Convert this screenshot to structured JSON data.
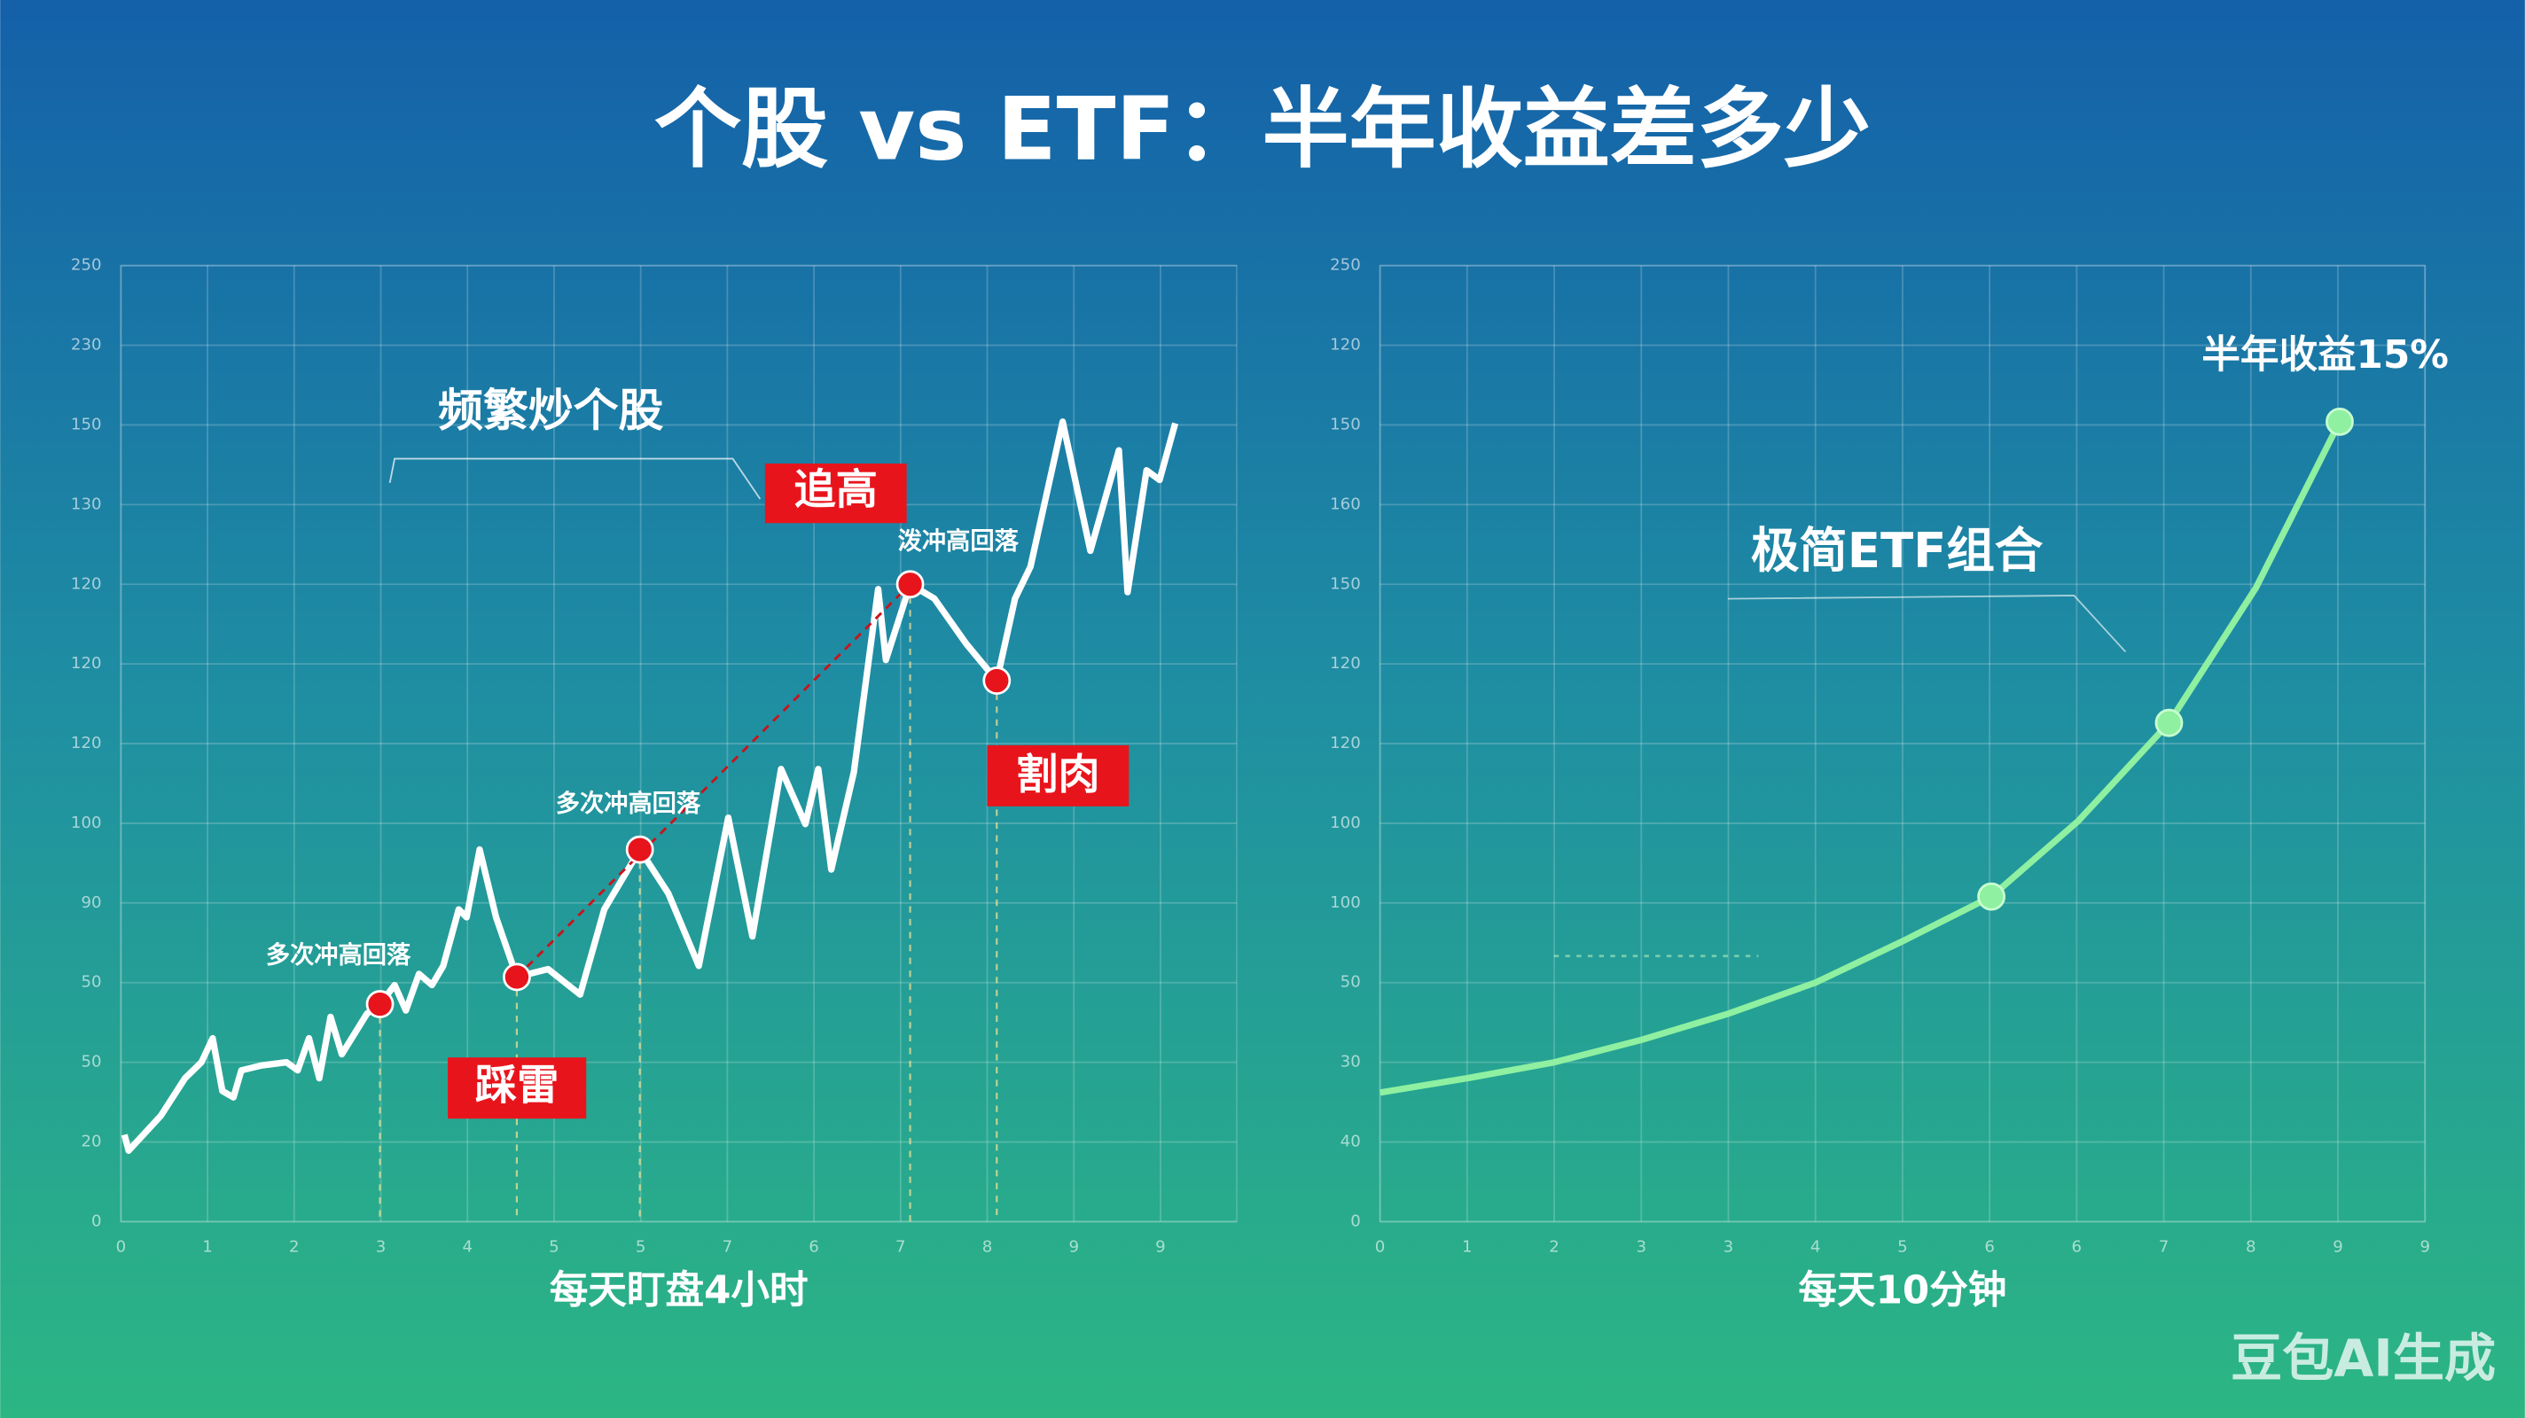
{
  "title": "个股 vs ETF：半年收益差多少",
  "watermark": "豆包AI生成",
  "chart_data": [
    {
      "type": "line",
      "x_label": "每天盯盘4小时",
      "xlim": [
        0,
        12.88
      ],
      "ylim": [
        0,
        12
      ],
      "xticks": [
        0,
        1,
        2,
        3,
        4,
        5,
        {
          "value": 6,
          "label": "5"
        },
        {
          "value": 7,
          "label": "7"
        },
        {
          "value": 8,
          "label": "6"
        },
        {
          "value": 9,
          "label": "7"
        },
        {
          "value": 10,
          "label": "8"
        },
        {
          "value": 11,
          "label": "9"
        },
        {
          "value": 12,
          "label": "9"
        }
      ],
      "yticks": [
        0,
        {
          "value": 1,
          "label": "20"
        },
        {
          "value": 2,
          "label": "50"
        },
        {
          "value": 3,
          "label": "50"
        },
        {
          "value": 4,
          "label": "90"
        },
        {
          "value": 5,
          "label": "100"
        },
        {
          "value": 6,
          "label": "120"
        },
        {
          "value": 7,
          "label": "120"
        },
        {
          "value": 8,
          "label": "120"
        },
        {
          "value": 9,
          "label": "130"
        },
        {
          "value": 10,
          "label": "150"
        },
        {
          "value": 11,
          "label": "230"
        },
        {
          "value": 12,
          "label": "250"
        }
      ],
      "grid": true,
      "series": [
        {
          "style": "line",
          "color": "#ffffff",
          "x": [
            0.04,
            0.09,
            0.46,
            0.74,
            0.93,
            1.06,
            1.17,
            1.3,
            1.39,
            1.62,
            1.91,
            2.04,
            2.17,
            2.29,
            2.42,
            2.55,
            2.84,
            2.99,
            3.16,
            3.29,
            3.44,
            3.59,
            3.72,
            3.9,
            3.99,
            4.14,
            4.33,
            4.57,
            4.93,
            5.3,
            5.58,
            5.99,
            6.32,
            6.67,
            7.01,
            7.29,
            7.62,
            7.9,
            8.05,
            8.2,
            8.46,
            8.74,
            8.83,
            9.11,
            9.39,
            9.76,
            10.11,
            10.32,
            10.5,
            10.87,
            11.19,
            11.52,
            11.62,
            11.84,
            11.99,
            12.17
          ],
          "values": [
            1.09,
            0.89,
            1.33,
            1.8,
            2.0,
            2.3,
            1.64,
            1.56,
            1.9,
            1.96,
            2.0,
            1.9,
            2.3,
            1.8,
            2.57,
            2.1,
            2.61,
            2.73,
            2.97,
            2.65,
            3.11,
            2.97,
            3.21,
            3.92,
            3.82,
            4.67,
            3.82,
            3.07,
            3.17,
            2.85,
            3.92,
            4.67,
            4.12,
            3.21,
            5.07,
            3.58,
            5.68,
            4.99,
            5.68,
            4.42,
            5.64,
            7.94,
            7.05,
            8.0,
            7.82,
            7.25,
            6.79,
            7.82,
            8.22,
            10.04,
            8.42,
            9.68,
            7.9,
            9.43,
            9.31,
            10.02
          ]
        },
        {
          "style": "markers",
          "color": "#e8141c",
          "x": [
            2.99,
            4.57,
            5.99,
            9.11,
            10.11
          ],
          "values": [
            2.73,
            3.07,
            4.67,
            8.0,
            6.79
          ]
        }
      ],
      "annotations": [
        "频繁炒个股",
        "追高",
        "割肉",
        "踩雷",
        "多次冲高回落",
        "多次冲高回落",
        "泼冲高回落"
      ]
    },
    {
      "type": "line",
      "x_label": "每天10分钟",
      "xlim": [
        0,
        12
      ],
      "ylim": [
        0,
        12
      ],
      "xticks": [
        0,
        1,
        2,
        3,
        {
          "value": 4,
          "label": "3"
        },
        {
          "value": 5,
          "label": "4"
        },
        {
          "value": 6,
          "label": "5"
        },
        {
          "value": 7,
          "label": "6"
        },
        {
          "value": 8,
          "label": "6"
        },
        {
          "value": 9,
          "label": "7"
        },
        {
          "value": 10,
          "label": "8"
        },
        {
          "value": 11,
          "label": "9"
        },
        {
          "value": 12,
          "label": "9"
        }
      ],
      "yticks": [
        0,
        {
          "value": 1,
          "label": "40"
        },
        {
          "value": 2,
          "label": "30"
        },
        {
          "value": 3,
          "label": "50"
        },
        {
          "value": 4,
          "label": "100"
        },
        {
          "value": 5,
          "label": "100"
        },
        {
          "value": 6,
          "label": "120"
        },
        {
          "value": 7,
          "label": "120"
        },
        {
          "value": 8,
          "label": "150"
        },
        {
          "value": 9,
          "label": "160"
        },
        {
          "value": 10,
          "label": "150"
        },
        {
          "value": 11,
          "label": "120"
        },
        {
          "value": 12,
          "label": "250"
        }
      ],
      "grid": true,
      "series": [
        {
          "style": "line",
          "color": "#8ef0a0",
          "x": [
            0,
            1,
            2,
            3,
            4,
            5,
            6,
            7.02,
            8.02,
            9.06,
            10.06,
            11.02
          ],
          "values": [
            1.62,
            1.8,
            2.0,
            2.28,
            2.61,
            3.0,
            3.52,
            4.08,
            5.03,
            6.26,
            7.96,
            10.04
          ]
        },
        {
          "style": "markers",
          "color": "#8ef0a0",
          "x": [
            7.02,
            9.06,
            11.02
          ],
          "values": [
            4.08,
            6.26,
            10.04
          ]
        }
      ],
      "annotations": [
        "极简ETF组合",
        "半年收益15%"
      ]
    }
  ]
}
